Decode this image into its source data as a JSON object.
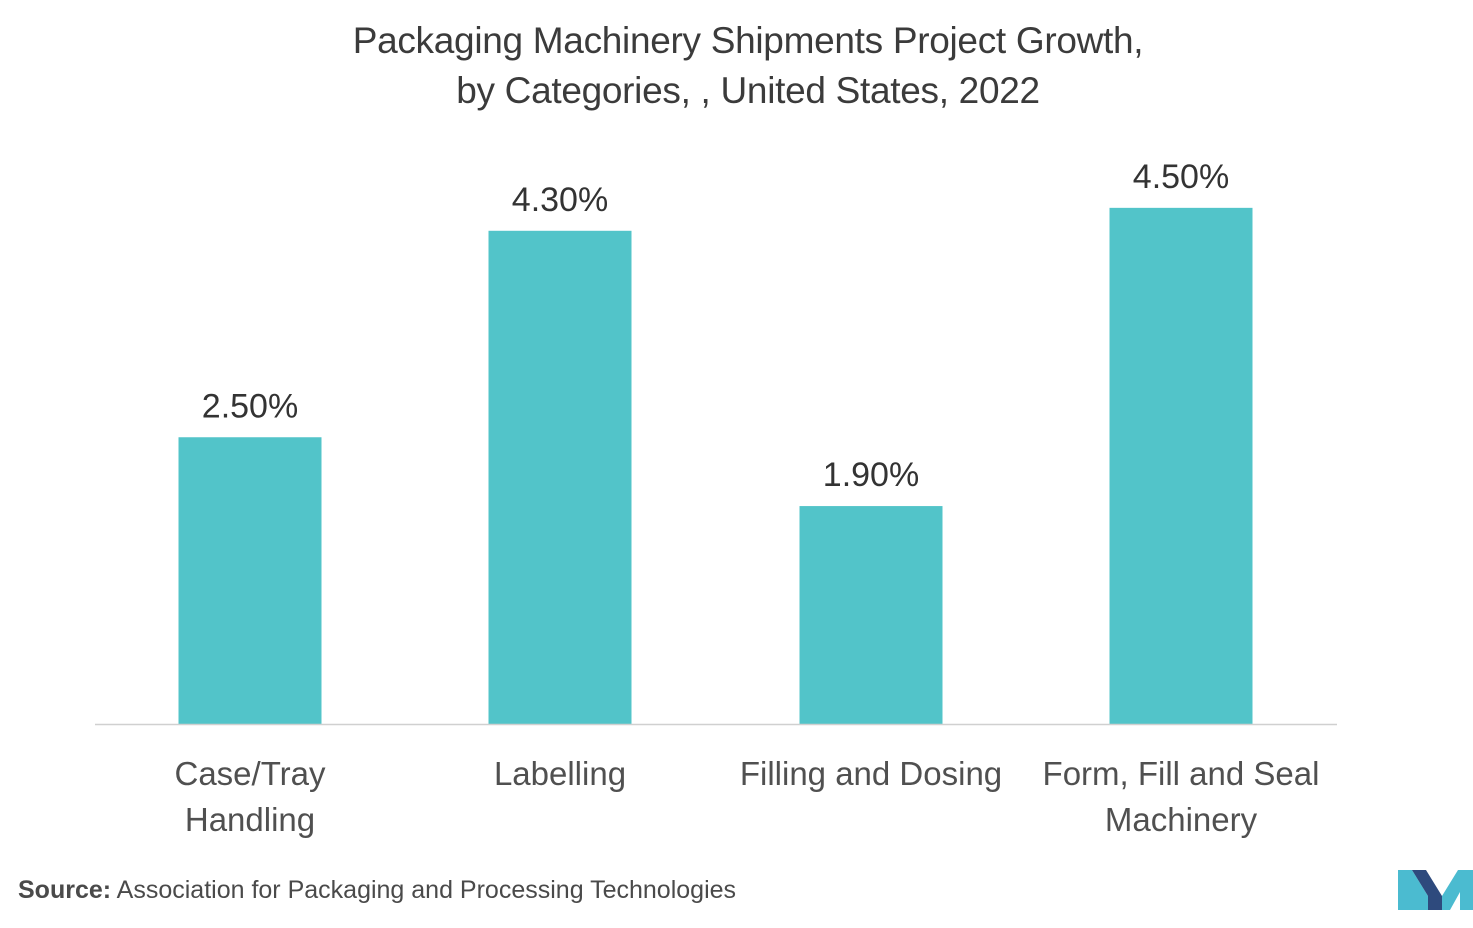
{
  "chart_data": {
    "type": "bar",
    "title": [
      "Packaging Machinery Shipments Project Growth,",
      "by Categories, , United States, 2022"
    ],
    "categories": [
      [
        "Case/Tray",
        "Handling"
      ],
      [
        "Labelling"
      ],
      [
        "Filling and Dosing"
      ],
      [
        "Form, Fill and Seal",
        "Machinery"
      ]
    ],
    "values": [
      2.5,
      4.3,
      1.9,
      4.5
    ],
    "value_labels": [
      "2.50%",
      "4.30%",
      "1.90%",
      "4.50%"
    ],
    "xlabel": "",
    "ylabel": "",
    "ylim": [
      0,
      5
    ],
    "grid": false,
    "bar_color": "#52c4c9",
    "axis_color": "#d0d0d0"
  },
  "source": {
    "label": "Source:",
    "text": "Association for Packaging and Processing Technologies"
  },
  "logo": {
    "icon": "mordor-intelligence-logo-icon",
    "colors": [
      "#2e4a7d",
      "#4bbbd0"
    ]
  }
}
